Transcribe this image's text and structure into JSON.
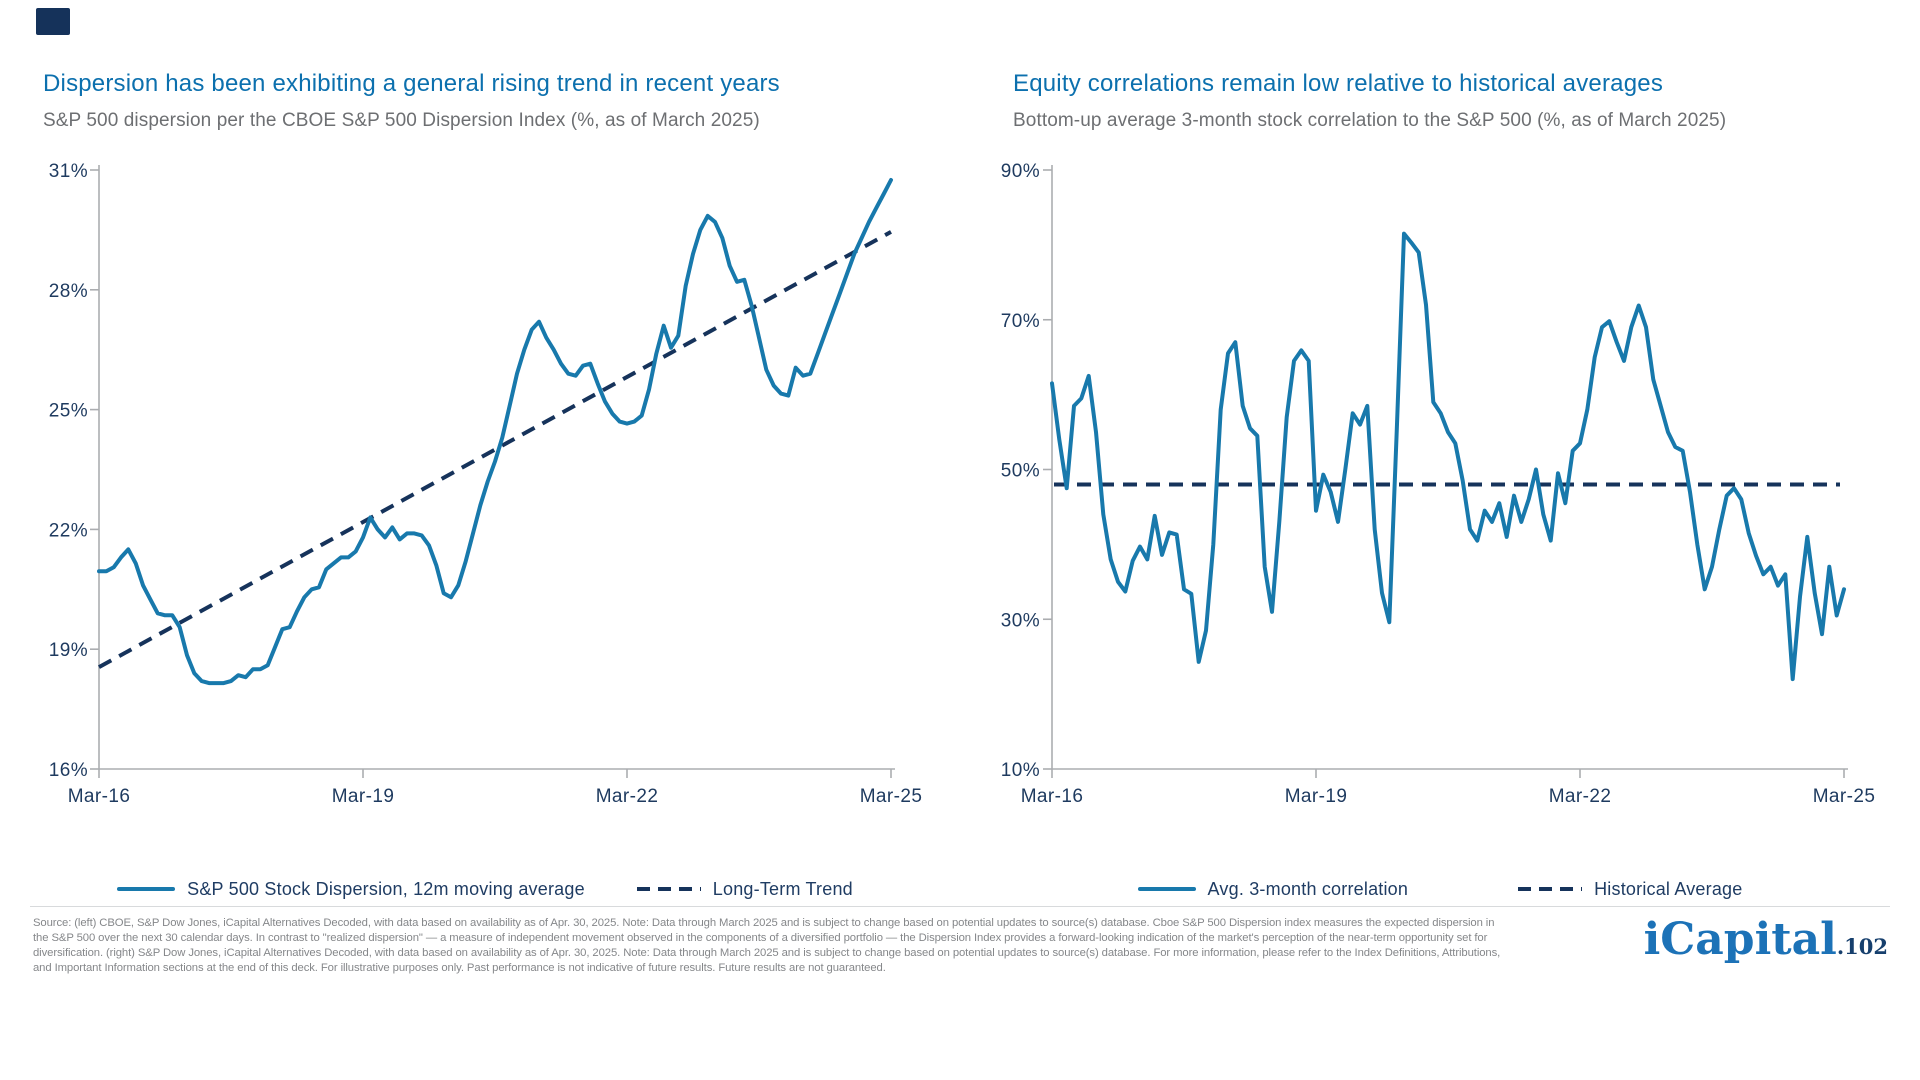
{
  "page": {
    "background": "#ffffff"
  },
  "colors": {
    "title_blue": "#0C70AE",
    "subtitle_gray": "#6D6F72",
    "axis_label_navy": "#1E3A5F",
    "axis_gray": "#ABADB0",
    "line_blue": "#1879AC",
    "dash_navy": "#16335B",
    "legend_text": "#1F3C63",
    "footer_gray": "#85878A",
    "divider_gray": "#D8DADC",
    "brand_square": "#15325A",
    "logo_blue": "#1C72B7",
    "logo_suffix_navy": "#163F6D"
  },
  "brand": {
    "logo_text": "iCapital",
    "logo_suffix": ".102",
    "page_number": "102"
  },
  "footer": {
    "lines": [
      "Source: (left) CBOE, S&P Dow Jones, iCapital Alternatives Decoded, with data based on availability as of Apr. 30, 2025. Note: Data through March 2025 and is subject to change based on potential updates to source(s) database. Cboe S&P 500 Dispersion index measures the expected dispersion in",
      "the S&P 500 over the next 30 calendar days. In contrast to \"realized dispersion\" — a measure of independent movement observed in the components of a diversified portfolio — the Dispersion Index provides a forward-looking indication of the market's perception of the near-term opportunity set for",
      "diversification. (right) S&P Dow Jones, iCapital Alternatives Decoded, with data based on availability as of Apr. 30, 2025. Note: Data through March 2025 and is subject to change based on potential updates to source(s) database. For more information, please refer to the Index Definitions, Attributions,",
      "and Important Information sections at the end of this deck. For illustrative purposes only. Past performance is not indicative of future results. Future results are not guaranteed."
    ]
  },
  "chart_data": [
    {
      "type": "line",
      "title": "Dispersion has been exhibiting a general rising trend in recent years",
      "subtitle": "S&P 500 dispersion per the CBOE S&P 500 Dispersion Index (%, as of March 2025)",
      "x_unit": "monthly",
      "x_range": [
        "Mar-16",
        "Mar-25"
      ],
      "x_tick_labels": [
        "Mar-16",
        "Mar-19",
        "Mar-22",
        "Mar-25"
      ],
      "ylim": [
        16,
        31
      ],
      "y_tick_labels": [
        "31%",
        "28%",
        "25%",
        "22%",
        "19%",
        "16%"
      ],
      "grid": false,
      "legend_position": "bottom",
      "series": [
        {
          "name": "S&P 500 Stock Dispersion, 12m moving average",
          "style": "solid",
          "values": [
            20.95,
            20.95,
            21.05,
            21.3,
            21.5,
            21.15,
            20.6,
            20.25,
            19.9,
            19.85,
            19.85,
            19.55,
            18.85,
            18.4,
            18.2,
            18.15,
            18.15,
            18.15,
            18.2,
            18.35,
            18.3,
            18.5,
            18.5,
            18.6,
            19.05,
            19.5,
            19.55,
            19.95,
            20.3,
            20.5,
            20.55,
            21.0,
            21.15,
            21.3,
            21.3,
            21.45,
            21.8,
            22.3,
            22.0,
            21.8,
            22.05,
            21.75,
            21.9,
            21.9,
            21.85,
            21.6,
            21.1,
            20.4,
            20.3,
            20.6,
            21.2,
            21.9,
            22.6,
            23.2,
            23.7,
            24.3,
            25.1,
            25.9,
            26.5,
            27.0,
            27.2,
            26.8,
            26.5,
            26.15,
            25.9,
            25.85,
            26.1,
            26.15,
            25.65,
            25.2,
            24.9,
            24.7,
            24.65,
            24.7,
            24.85,
            25.5,
            26.4,
            27.1,
            26.55,
            26.85,
            28.1,
            28.9,
            29.5,
            29.85,
            29.7,
            29.3,
            28.6,
            28.2,
            28.25,
            27.6,
            26.8,
            26.0,
            25.6,
            25.4,
            25.35,
            26.05,
            25.85,
            25.9,
            26.4,
            26.9,
            27.4,
            27.9,
            28.4,
            28.9,
            29.3,
            29.7,
            30.05,
            30.4,
            30.75
          ]
        }
      ],
      "trend_line": {
        "name": "Long-Term Trend",
        "style": "dashed",
        "start_value": 18.55,
        "end_value": 29.45
      }
    },
    {
      "type": "line",
      "title": "Equity correlations remain low relative to historical averages",
      "subtitle": "Bottom-up average 3-month stock correlation to the S&P 500 (%, as of March 2025)",
      "x_unit": "monthly",
      "x_range": [
        "Mar-16",
        "Mar-25"
      ],
      "x_tick_labels": [
        "Mar-16",
        "Mar-19",
        "Mar-22",
        "Mar-25"
      ],
      "ylim": [
        10,
        90
      ],
      "y_tick_labels": [
        "90%",
        "70%",
        "50%",
        "30%",
        "10%"
      ],
      "grid": false,
      "legend_position": "bottom",
      "series": [
        {
          "name": "Avg. 3-month correlation",
          "style": "solid",
          "values": [
            61.5,
            54,
            47.5,
            58.5,
            59.5,
            62.5,
            55,
            44,
            38,
            35,
            33.7,
            37.8,
            39.7,
            38,
            43.8,
            38.6,
            41.6,
            41.3,
            34,
            33.4,
            24.3,
            28.5,
            40,
            58,
            65.5,
            67,
            58.5,
            55.5,
            54.5,
            37,
            31,
            43,
            57,
            64.5,
            65.9,
            64.5,
            44.5,
            49.3,
            47,
            43,
            50,
            57.5,
            56,
            58.5,
            42,
            33.5,
            29.6,
            55,
            81.5,
            80.3,
            79,
            72,
            59,
            57.5,
            55,
            53.5,
            48.5,
            42,
            40.5,
            44.5,
            43,
            45.5,
            41,
            46.5,
            43,
            46,
            50,
            44,
            40.5,
            49.5,
            45.5,
            52.5,
            53.5,
            58,
            65,
            69,
            69.8,
            67,
            64.5,
            69,
            71.9,
            69,
            62,
            58.5,
            55,
            53,
            52.5,
            47,
            40,
            34,
            37,
            42,
            46.5,
            47.5,
            46,
            41.5,
            38.5,
            36,
            37,
            34.5,
            36,
            22,
            33,
            41,
            33.5,
            28,
            37,
            30.5,
            34
          ]
        }
      ],
      "average_line": {
        "name": "Historical Average",
        "style": "dashed",
        "value": 48
      }
    }
  ]
}
